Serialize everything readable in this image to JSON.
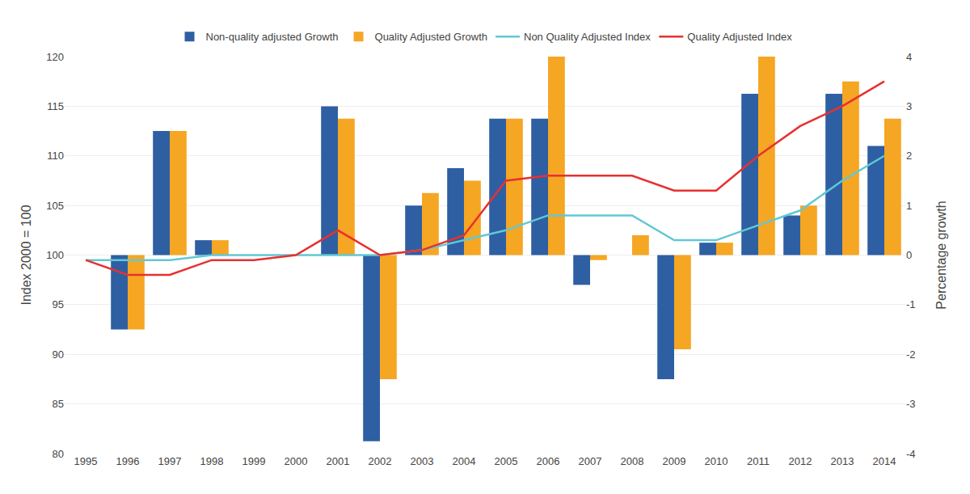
{
  "chart_data": {
    "type": "bar",
    "categories": [
      "1995",
      "1996",
      "1997",
      "1998",
      "1999",
      "2000",
      "2001",
      "2002",
      "2003",
      "2004",
      "2005",
      "2006",
      "2007",
      "2008",
      "2009",
      "2010",
      "2011",
      "2012",
      "2013",
      "2014"
    ],
    "series": [
      {
        "name": "Non-quality adjusted Growth",
        "type": "bar",
        "axis": "y2",
        "color": "#2E5FA3",
        "values": [
          0.0,
          -1.5,
          2.5,
          0.3,
          0.0,
          0.0,
          3.0,
          -3.75,
          1.0,
          1.75,
          2.75,
          2.75,
          -0.6,
          0.0,
          -2.5,
          0.25,
          3.25,
          0.8,
          3.25,
          2.2
        ]
      },
      {
        "name": "Quality Adjusted Growth",
        "type": "bar",
        "axis": "y2",
        "color": "#F5A623",
        "values": [
          0.0,
          -1.5,
          2.5,
          0.3,
          0.0,
          0.0,
          2.75,
          -2.5,
          1.25,
          1.5,
          2.75,
          4.0,
          -0.1,
          0.4,
          -1.9,
          0.25,
          4.0,
          1.0,
          3.5,
          2.75
        ]
      },
      {
        "name": "Non Quality Adjusted Index",
        "type": "line",
        "color": "#62C8D4",
        "values": [
          99.5,
          99.5,
          99.5,
          100.0,
          100.0,
          100.0,
          100.0,
          100.0,
          100.5,
          101.5,
          102.5,
          104.0,
          104.0,
          104.0,
          101.5,
          101.5,
          103.0,
          104.5,
          107.5,
          110.0
        ]
      },
      {
        "name": "Quality Adjusted Index",
        "type": "line",
        "color": "#E83030",
        "values": [
          99.5,
          98.0,
          98.0,
          99.5,
          99.5,
          100.0,
          102.5,
          100.0,
          100.5,
          102.0,
          107.5,
          108.0,
          108.0,
          108.0,
          106.5,
          106.5,
          110.0,
          113.0,
          115.0,
          117.5
        ]
      }
    ],
    "y_label": "Index 2000 = 100",
    "y2_label": "Percentage growth",
    "ylim": [
      80,
      120
    ],
    "yticks": [
      80,
      85,
      90,
      95,
      100,
      105,
      110,
      115,
      120
    ],
    "y2lim": [
      -4,
      4
    ],
    "y2ticks": [
      -4,
      -3,
      -2,
      -1,
      0,
      1,
      2,
      3,
      4
    ],
    "grid": true,
    "legend": "top"
  }
}
